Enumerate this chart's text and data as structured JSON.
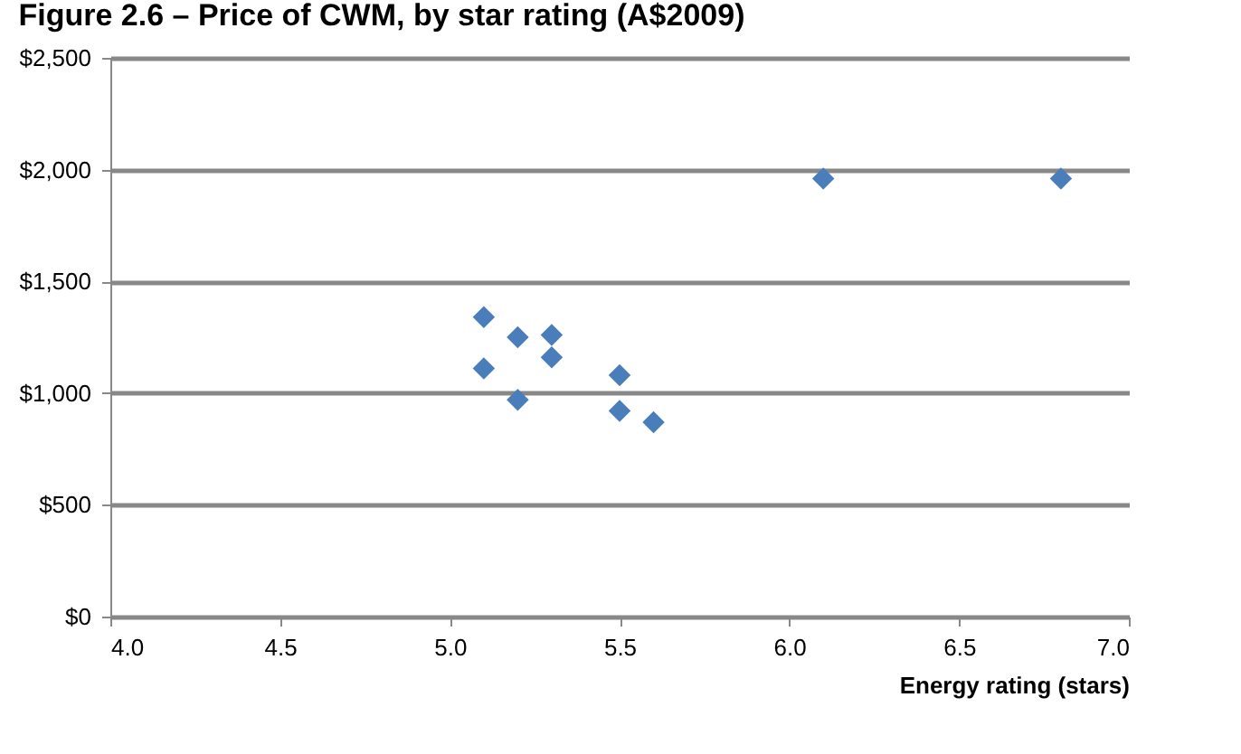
{
  "chart_data": {
    "type": "scatter",
    "title": "Figure 2.6 – Price of CWM, by star rating (A$2009)",
    "xlabel": "Energy rating (stars)",
    "x": [
      5.1,
      5.1,
      5.2,
      5.2,
      5.3,
      5.3,
      5.5,
      5.5,
      5.6,
      6.1,
      6.8
    ],
    "series": [
      {
        "color": "#4a7ebb",
        "values": [
          1340,
          1110,
          1250,
          970,
          1260,
          1160,
          1080,
          920,
          870,
          1960,
          1960
        ]
      }
    ],
    "xlim": [
      4.0,
      7.0
    ],
    "xticks": [
      {
        "value": 4,
        "label": "4.0"
      },
      {
        "value": 4.5,
        "label": "4.5"
      },
      {
        "value": 5,
        "label": "5.0"
      },
      {
        "value": 5.5,
        "label": "5.5"
      },
      {
        "value": 6,
        "label": "6.0"
      },
      {
        "value": 6.5,
        "label": "6.5"
      },
      {
        "value": 7,
        "label": "7.0"
      }
    ],
    "ylim": [
      0,
      2500
    ],
    "yticks": [
      {
        "value": 0,
        "label": "$0"
      },
      {
        "value": 500,
        "label": "$500"
      },
      {
        "value": 1000,
        "label": "$1,000"
      },
      {
        "value": 1500,
        "label": "$1,500"
      },
      {
        "value": 2000,
        "label": "$2,000"
      },
      {
        "value": 2500,
        "label": "$2,500"
      }
    ],
    "grid": "y",
    "marker": "diamond"
  }
}
